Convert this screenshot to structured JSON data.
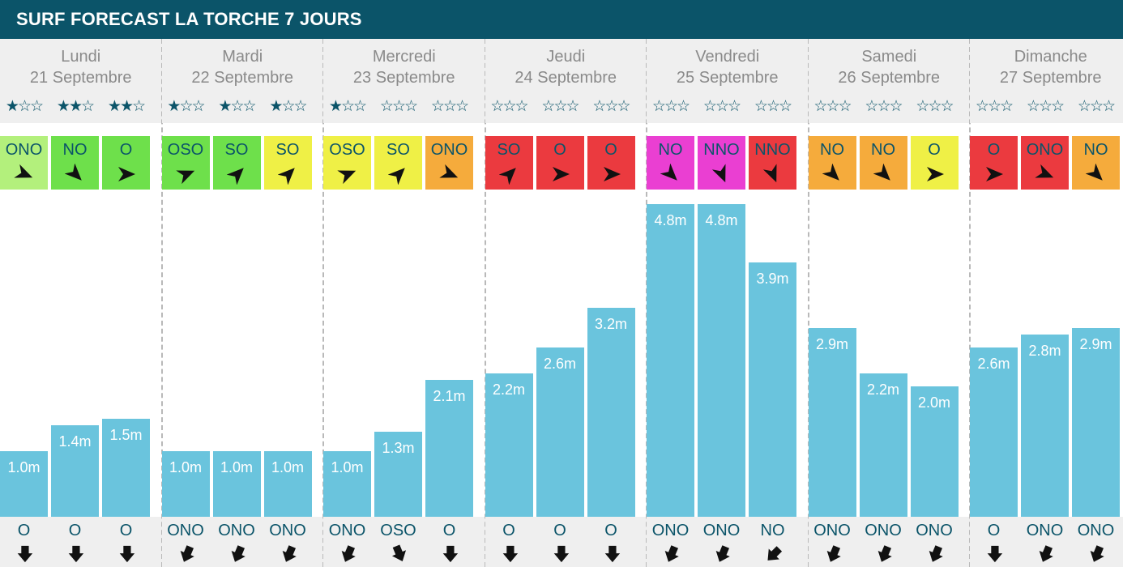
{
  "header": {
    "title": "SURF FORECAST LA TORCHE 7 JOURS"
  },
  "colors": {
    "header_bg": "#0b5469",
    "bar": "#6ac4dd",
    "wind_light_green": "#b3f07c",
    "wind_green": "#6ee04b",
    "wind_yellow": "#eff046",
    "wind_orange": "#f5ab3c",
    "wind_red": "#eb3a3f",
    "wind_magenta": "#ea3fd2"
  },
  "chart_data": {
    "type": "bar",
    "unit": "m",
    "ylim": [
      0,
      5
    ],
    "days": [
      {
        "name": "Lundi",
        "date": "21 Septembre",
        "slots": [
          {
            "stars": 1,
            "wind": "ONO",
            "wind_color": "#b3f07c",
            "wind_deg": 292.5,
            "height": 1.0,
            "label": "1.0m",
            "swell": "O",
            "swell_deg": 270
          },
          {
            "stars": 2,
            "wind": "NO",
            "wind_color": "#6ee04b",
            "wind_deg": 315,
            "height": 1.4,
            "label": "1.4m",
            "swell": "O",
            "swell_deg": 270
          },
          {
            "stars": 2,
            "wind": "O",
            "wind_color": "#6ee04b",
            "wind_deg": 270,
            "height": 1.5,
            "label": "1.5m",
            "swell": "O",
            "swell_deg": 270
          }
        ]
      },
      {
        "name": "Mardi",
        "date": "22 Septembre",
        "slots": [
          {
            "stars": 1,
            "wind": "OSO",
            "wind_color": "#6ee04b",
            "wind_deg": 247.5,
            "height": 1.0,
            "label": "1.0m",
            "swell": "ONO",
            "swell_deg": 292.5
          },
          {
            "stars": 1,
            "wind": "SO",
            "wind_color": "#6ee04b",
            "wind_deg": 225,
            "height": 1.0,
            "label": "1.0m",
            "swell": "ONO",
            "swell_deg": 292.5
          },
          {
            "stars": 1,
            "wind": "SO",
            "wind_color": "#eff046",
            "wind_deg": 225,
            "height": 1.0,
            "label": "1.0m",
            "swell": "ONO",
            "swell_deg": 292.5
          }
        ]
      },
      {
        "name": "Mercredi",
        "date": "23 Septembre",
        "slots": [
          {
            "stars": 1,
            "wind": "OSO",
            "wind_color": "#eff046",
            "wind_deg": 247.5,
            "height": 1.0,
            "label": "1.0m",
            "swell": "ONO",
            "swell_deg": 292.5
          },
          {
            "stars": 0,
            "wind": "SO",
            "wind_color": "#eff046",
            "wind_deg": 225,
            "height": 1.3,
            "label": "1.3m",
            "swell": "OSO",
            "swell_deg": 247.5
          },
          {
            "stars": 0,
            "wind": "ONO",
            "wind_color": "#f5ab3c",
            "wind_deg": 292.5,
            "height": 2.1,
            "label": "2.1m",
            "swell": "O",
            "swell_deg": 270
          }
        ]
      },
      {
        "name": "Jeudi",
        "date": "24 Septembre",
        "slots": [
          {
            "stars": 0,
            "wind": "SO",
            "wind_color": "#eb3a3f",
            "wind_deg": 225,
            "height": 2.2,
            "label": "2.2m",
            "swell": "O",
            "swell_deg": 270
          },
          {
            "stars": 0,
            "wind": "O",
            "wind_color": "#eb3a3f",
            "wind_deg": 270,
            "height": 2.6,
            "label": "2.6m",
            "swell": "O",
            "swell_deg": 270
          },
          {
            "stars": 0,
            "wind": "O",
            "wind_color": "#eb3a3f",
            "wind_deg": 270,
            "height": 3.2,
            "label": "3.2m",
            "swell": "O",
            "swell_deg": 270
          }
        ]
      },
      {
        "name": "Vendredi",
        "date": "25 Septembre",
        "slots": [
          {
            "stars": 0,
            "wind": "NO",
            "wind_color": "#ea3fd2",
            "wind_deg": 315,
            "height": 4.8,
            "label": "4.8m",
            "swell": "ONO",
            "swell_deg": 292.5
          },
          {
            "stars": 0,
            "wind": "NNO",
            "wind_color": "#ea3fd2",
            "wind_deg": 337.5,
            "height": 4.8,
            "label": "4.8m",
            "swell": "ONO",
            "swell_deg": 292.5
          },
          {
            "stars": 0,
            "wind": "NNO",
            "wind_color": "#eb3a3f",
            "wind_deg": 337.5,
            "height": 3.9,
            "label": "3.9m",
            "swell": "NO",
            "swell_deg": 315
          }
        ]
      },
      {
        "name": "Samedi",
        "date": "26 Septembre",
        "slots": [
          {
            "stars": 0,
            "wind": "NO",
            "wind_color": "#f5ab3c",
            "wind_deg": 315,
            "height": 2.9,
            "label": "2.9m",
            "swell": "ONO",
            "swell_deg": 292.5
          },
          {
            "stars": 0,
            "wind": "NO",
            "wind_color": "#f5ab3c",
            "wind_deg": 315,
            "height": 2.2,
            "label": "2.2m",
            "swell": "ONO",
            "swell_deg": 292.5
          },
          {
            "stars": 0,
            "wind": "O",
            "wind_color": "#eff046",
            "wind_deg": 270,
            "height": 2.0,
            "label": "2.0m",
            "swell": "ONO",
            "swell_deg": 292.5
          }
        ]
      },
      {
        "name": "Dimanche",
        "date": "27 Septembre",
        "slots": [
          {
            "stars": 0,
            "wind": "O",
            "wind_color": "#eb3a3f",
            "wind_deg": 270,
            "height": 2.6,
            "label": "2.6m",
            "swell": "O",
            "swell_deg": 270
          },
          {
            "stars": 0,
            "wind": "ONO",
            "wind_color": "#eb3a3f",
            "wind_deg": 292.5,
            "height": 2.8,
            "label": "2.8m",
            "swell": "ONO",
            "swell_deg": 292.5
          },
          {
            "stars": 0,
            "wind": "NO",
            "wind_color": "#f5ab3c",
            "wind_deg": 315,
            "height": 2.9,
            "label": "2.9m",
            "swell": "ONO",
            "swell_deg": 292.5
          }
        ]
      }
    ]
  }
}
